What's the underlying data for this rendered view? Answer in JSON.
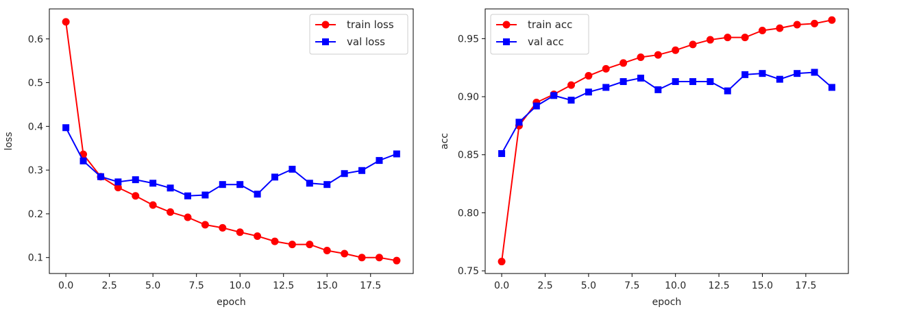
{
  "chart_data": [
    {
      "type": "line",
      "xlabel": "epoch",
      "ylabel": "loss",
      "xlim": [
        -0.95,
        19.95
      ],
      "ylim": [
        0.0635,
        0.6686
      ],
      "xticks": [
        0.0,
        2.5,
        5.0,
        7.5,
        10.0,
        12.5,
        15.0,
        17.5
      ],
      "xtick_labels": [
        "0.0",
        "2.5",
        "5.0",
        "7.5",
        "10.0",
        "12.5",
        "15.0",
        "17.5"
      ],
      "yticks": [
        0.1,
        0.2,
        0.3,
        0.4,
        0.5,
        0.6
      ],
      "ytick_labels": [
        "0.1",
        "0.2",
        "0.3",
        "0.4",
        "0.5",
        "0.6"
      ],
      "legend_position": "upper right",
      "grid": false,
      "x": [
        0,
        1,
        2,
        3,
        4,
        5,
        6,
        7,
        8,
        9,
        10,
        11,
        12,
        13,
        14,
        15,
        16,
        17,
        18,
        19
      ],
      "series": [
        {
          "name": "train loss",
          "color": "#ff0000",
          "marker": "circle",
          "values": [
            0.639,
            0.336,
            0.285,
            0.26,
            0.241,
            0.22,
            0.204,
            0.192,
            0.175,
            0.168,
            0.158,
            0.149,
            0.137,
            0.13,
            0.13,
            0.116,
            0.109,
            0.1,
            0.1,
            0.093
          ]
        },
        {
          "name": "val loss",
          "color": "#0000ff",
          "marker": "square",
          "values": [
            0.397,
            0.321,
            0.285,
            0.273,
            0.278,
            0.27,
            0.259,
            0.241,
            0.243,
            0.267,
            0.267,
            0.245,
            0.284,
            0.302,
            0.27,
            0.267,
            0.292,
            0.299,
            0.322,
            0.337
          ]
        }
      ]
    },
    {
      "type": "line",
      "xlabel": "epoch",
      "ylabel": "acc",
      "xlim": [
        -0.95,
        19.95
      ],
      "ylim": [
        0.7477,
        0.9756
      ],
      "xticks": [
        0.0,
        2.5,
        5.0,
        7.5,
        10.0,
        12.5,
        15.0,
        17.5
      ],
      "xtick_labels": [
        "0.0",
        "2.5",
        "5.0",
        "7.5",
        "10.0",
        "12.5",
        "15.0",
        "17.5"
      ],
      "yticks": [
        0.75,
        0.8,
        0.85,
        0.9,
        0.95
      ],
      "ytick_labels": [
        "0.75",
        "0.80",
        "0.85",
        "0.90",
        "0.95"
      ],
      "legend_position": "upper left",
      "grid": false,
      "x": [
        0,
        1,
        2,
        3,
        4,
        5,
        6,
        7,
        8,
        9,
        10,
        11,
        12,
        13,
        14,
        15,
        16,
        17,
        18,
        19
      ],
      "series": [
        {
          "name": "train acc",
          "color": "#ff0000",
          "marker": "circle",
          "values": [
            0.758,
            0.875,
            0.895,
            0.902,
            0.91,
            0.918,
            0.924,
            0.929,
            0.934,
            0.936,
            0.94,
            0.945,
            0.949,
            0.951,
            0.951,
            0.957,
            0.959,
            0.962,
            0.963,
            0.966
          ]
        },
        {
          "name": "val acc",
          "color": "#0000ff",
          "marker": "square",
          "values": [
            0.851,
            0.878,
            0.892,
            0.901,
            0.897,
            0.904,
            0.908,
            0.913,
            0.916,
            0.906,
            0.913,
            0.913,
            0.913,
            0.905,
            0.919,
            0.92,
            0.915,
            0.92,
            0.921,
            0.908
          ]
        }
      ]
    }
  ]
}
